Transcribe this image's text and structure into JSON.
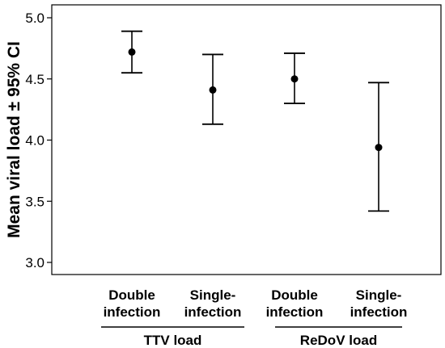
{
  "chart_data": {
    "type": "scatter",
    "title": "",
    "xlabel": "",
    "ylabel": "Mean viral load ± 95% CI",
    "ylim": [
      3.0,
      5.0
    ],
    "yticks": [
      "3.0",
      "3.5",
      "4.0",
      "4.5",
      "5.0"
    ],
    "grid": false,
    "colors": {
      "marks": "#000000"
    },
    "points": [
      {
        "label_line1": "Double",
        "label_line2": "infection",
        "mean": 4.72,
        "ci_low": 4.55,
        "ci_high": 4.89
      },
      {
        "label_line1": "Single-",
        "label_line2": "infection",
        "mean": 4.41,
        "ci_low": 4.13,
        "ci_high": 4.7
      },
      {
        "label_line1": "Double",
        "label_line2": "infection",
        "mean": 4.5,
        "ci_low": 4.3,
        "ci_high": 4.71
      },
      {
        "label_line1": "Single-",
        "label_line2": "infection",
        "mean": 3.94,
        "ci_low": 3.42,
        "ci_high": 4.47
      }
    ],
    "groups": [
      {
        "label": "TTV load",
        "members": [
          0,
          1
        ]
      },
      {
        "label": "ReDoV load",
        "members": [
          2,
          3
        ]
      }
    ]
  }
}
